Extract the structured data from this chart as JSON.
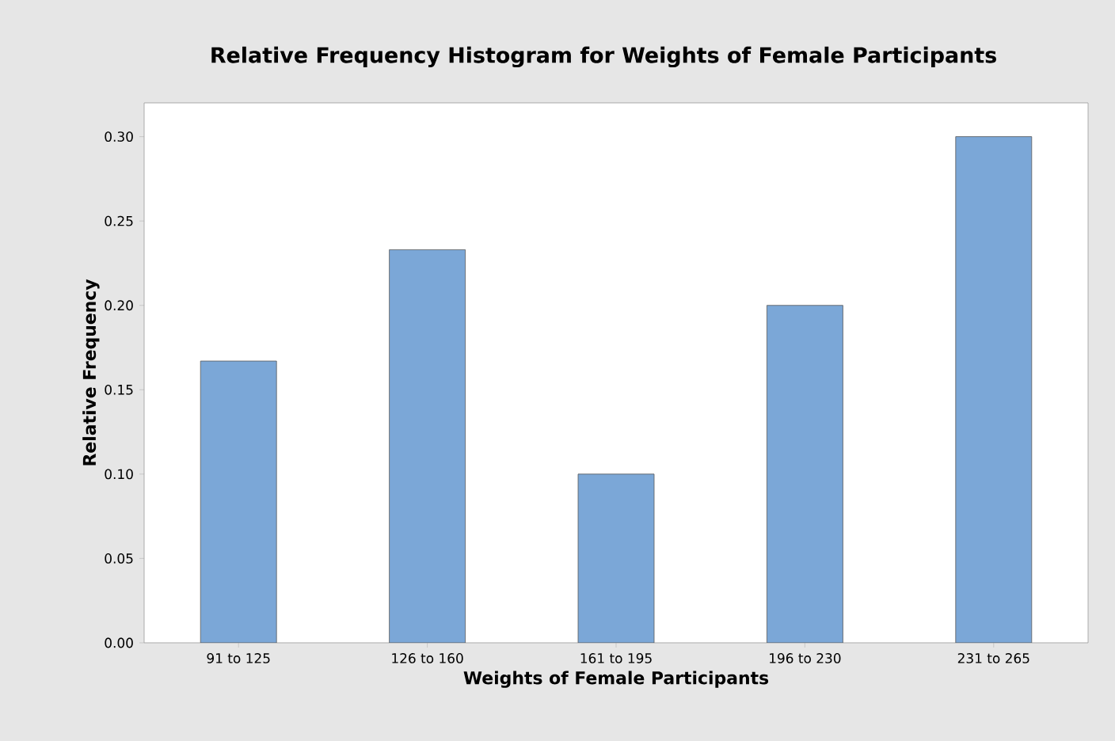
{
  "chart_data": {
    "type": "bar",
    "title": "Relative Frequency Histogram for Weights of Female Participants",
    "xlabel": "Weights of Female Participants",
    "ylabel": "Relative Frequency",
    "categories": [
      "91 to 125",
      "126 to 160",
      "161 to 195",
      "196 to 230",
      "231 to 265"
    ],
    "values": [
      0.167,
      0.233,
      0.1,
      0.2,
      0.3
    ],
    "color": "#7ba7d7",
    "ylim": [
      0,
      0.32
    ],
    "yticks": [
      {
        "value": 0,
        "label": "0.00"
      },
      {
        "value": 0.05,
        "label": "0.05"
      },
      {
        "value": 0.1,
        "label": "0.10"
      },
      {
        "value": 0.15,
        "label": "0.15"
      },
      {
        "value": 0.2,
        "label": "0.20"
      },
      {
        "value": 0.25,
        "label": "0.25"
      },
      {
        "value": 0.3,
        "label": "0.30"
      }
    ],
    "grid": false
  }
}
